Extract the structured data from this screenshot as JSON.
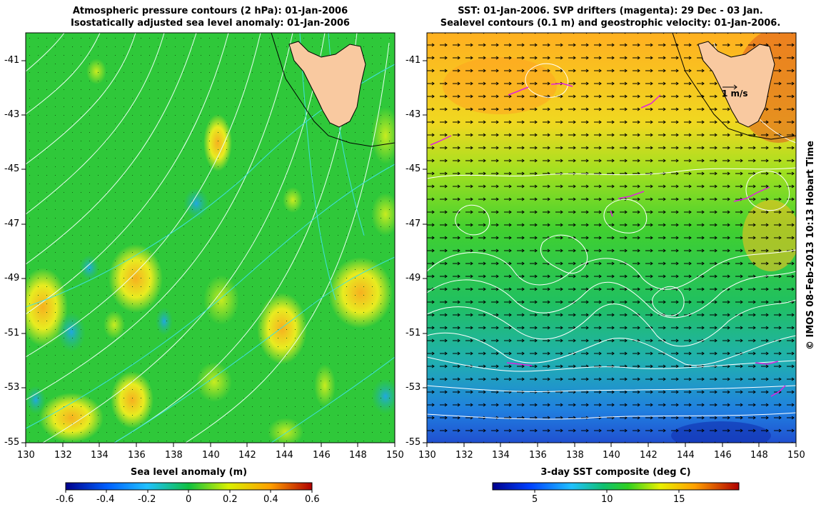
{
  "left_panel": {
    "title_line1": "Atmospheric pressure contours (2 hPa): 01-Jan-2006",
    "title_line2": "Isostatically adjusted sea level anomaly: 01-Jan-2006",
    "colorbar": {
      "label": "Sea level anomaly (m)",
      "ticks": [
        "-0.6",
        "-0.4",
        "-0.2",
        "0",
        "0.2",
        "0.4",
        "0.6"
      ]
    }
  },
  "right_panel": {
    "title_line1": "SST: 01-Jan-2006. SVP drifters (magenta): 29 Dec - 03 Jan.",
    "title_line2": "Sealevel contours (0.1 m) and geostrophic velocity: 01-Jan-2006.",
    "scale_label": "1 m/s",
    "colorbar": {
      "label": "3-day SST composite (deg C)",
      "ticks": [
        "5",
        "10",
        "15"
      ]
    }
  },
  "axes": {
    "x_ticks": [
      "130",
      "132",
      "134",
      "136",
      "138",
      "140",
      "142",
      "144",
      "146",
      "148",
      "150"
    ],
    "y_ticks": [
      "-41",
      "-43",
      "-45",
      "-47",
      "-49",
      "-51",
      "-53",
      "-55"
    ]
  },
  "credit": "© IMOS 08-Feb-2013 10:13 Hobart Time",
  "colors": {
    "land": "#f9c9a0",
    "pressure_contour": "#e8fff0",
    "sealevel_contour": "#ffffff",
    "drifter": "#e020e0",
    "anomaly_cyan_contour": "#40e0e0"
  }
}
